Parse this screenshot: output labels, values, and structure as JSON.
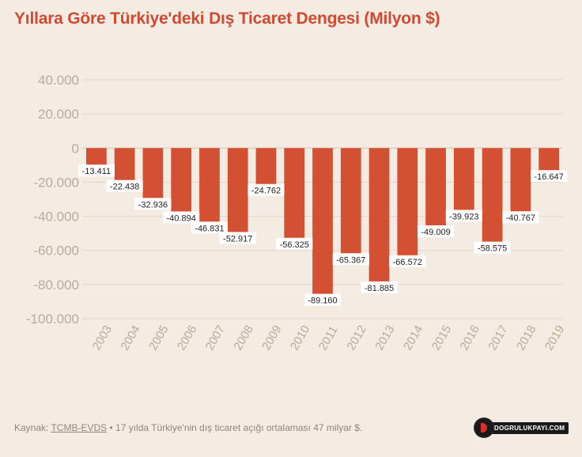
{
  "title": "Yıllara Göre Türkiye'deki Dış Ticaret Dengesi (Milyon $)",
  "footer": {
    "source_label": "Kaynak:",
    "source_name": "TCMB-EVDS",
    "note": "• 17 yılda Türkiye'nin dış ticaret açığı ortalaması 47 milyar $."
  },
  "logo": {
    "text": "DOGRULUKPAYI.COM"
  },
  "colors": {
    "bar": "#d35032",
    "grid": "#e3d6c6",
    "tick": "#b8ab99",
    "title": "#cf4a32"
  },
  "chart_data": {
    "type": "bar",
    "title": "Yıllara Göre Türkiye'deki Dış Ticaret Dengesi (Milyon $)",
    "categories": [
      "2003",
      "2004",
      "2005",
      "2006",
      "2007",
      "2008",
      "2009",
      "2010",
      "2011",
      "2012",
      "2013",
      "2014",
      "2015",
      "2016",
      "2017",
      "2018",
      "2019"
    ],
    "values": [
      -13411,
      -22438,
      -32936,
      -40894,
      -46831,
      -52917,
      -24762,
      -56325,
      -89160,
      -65367,
      -81885,
      -66572,
      -49009,
      -39923,
      -58575,
      -40767,
      -16647
    ],
    "value_labels": [
      "-13.411",
      "-22.438",
      "-32.936",
      "-40.894",
      "-46.831",
      "-52.917",
      "-24.762",
      "-56.325",
      "-89.160",
      "-65.367",
      "-81.885",
      "-66.572",
      "-49.009",
      "-39.923",
      "-58.575",
      "-40.767",
      "-16.647"
    ],
    "y_ticks": [
      40000,
      20000,
      0,
      -20000,
      -40000,
      -60000,
      -80000,
      -100000
    ],
    "y_tick_labels": [
      "40.000",
      "20.000",
      "0",
      "-20.000",
      "-40.000",
      "-60.000",
      "-80.000",
      "-100.000"
    ],
    "ylim": [
      -100000,
      40000
    ],
    "grid": true,
    "legend": "none"
  }
}
